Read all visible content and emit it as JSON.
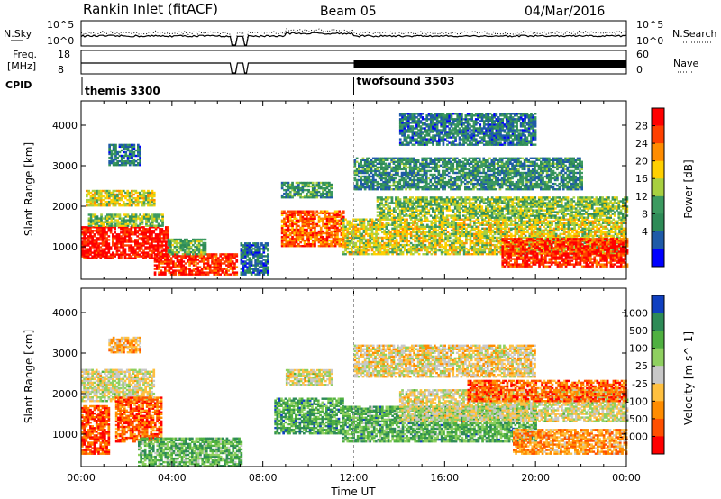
{
  "header": {
    "station": "Rankin Inlet (fitACF)",
    "beam": "Beam 05",
    "date": "04/Mar/2016"
  },
  "ops": {
    "nsky_label": "N.Sky",
    "nsky_ticks": [
      "10^5",
      "10^0"
    ],
    "nsearch_label": "N.Search",
    "nsearch_ticks": [
      "10^5",
      "10^0"
    ],
    "freq_label_1": "Freq.",
    "freq_label_2": "[MHz]",
    "freq_ticks": [
      "18",
      "8"
    ],
    "nave_label": "Nave",
    "nave_ticks": [
      "60",
      "0"
    ],
    "cpid_label": "CPID",
    "cpid_segments": [
      {
        "name": "themis 3300",
        "start_hour": 0
      },
      {
        "name": "twofsound 3503",
        "start_hour": 12
      }
    ]
  },
  "chart_data": [
    {
      "type": "heatmap",
      "name": "Power",
      "xlabel": "",
      "ylabel": "Slant Range [km]",
      "xlim_hours": [
        0,
        24
      ],
      "ylim": [
        200,
        4600
      ],
      "ytick_values": [
        1000,
        2000,
        3000,
        4000
      ],
      "ytick_labels": [
        "1000",
        "2000",
        "3000",
        "4000"
      ],
      "colorbar_label": "Power [dB]",
      "colorbar_ticks": [
        "28",
        "24",
        "20",
        "16",
        "12",
        "8",
        "4"
      ],
      "colorbar_colors": [
        "#ff0000",
        "#ff4000",
        "#ff8c00",
        "#ffd000",
        "#a8d040",
        "#3c9a60",
        "#2e8b57",
        "#1e5aa8",
        "#0000ff"
      ],
      "regions": [
        {
          "t": [
            0.0,
            3.8
          ],
          "r": [
            700,
            1500
          ],
          "level": 0.95
        },
        {
          "t": [
            0.3,
            3.6
          ],
          "r": [
            1500,
            1800
          ],
          "level": 0.45
        },
        {
          "t": [
            0.2,
            3.2
          ],
          "r": [
            2000,
            2400
          ],
          "level": 0.55
        },
        {
          "t": [
            1.2,
            2.6
          ],
          "r": [
            3000,
            3500
          ],
          "level": 0.25
        },
        {
          "t": [
            3.2,
            6.8
          ],
          "r": [
            300,
            800
          ],
          "level": 0.9
        },
        {
          "t": [
            3.8,
            5.5
          ],
          "r": [
            800,
            1200
          ],
          "level": 0.4
        },
        {
          "t": [
            7.0,
            8.2
          ],
          "r": [
            300,
            1100
          ],
          "level": 0.2
        },
        {
          "t": [
            8.8,
            11.5
          ],
          "r": [
            1000,
            1900
          ],
          "level": 0.8
        },
        {
          "t": [
            8.8,
            11.0
          ],
          "r": [
            2200,
            2600
          ],
          "level": 0.35
        },
        {
          "t": [
            11.5,
            24.0
          ],
          "r": [
            800,
            1700
          ],
          "level": 0.55
        },
        {
          "t": [
            13.0,
            24.0
          ],
          "r": [
            1700,
            2200
          ],
          "level": 0.45
        },
        {
          "t": [
            18.5,
            24.0
          ],
          "r": [
            500,
            1200
          ],
          "level": 0.9
        },
        {
          "t": [
            12.0,
            22.0
          ],
          "r": [
            2400,
            3200
          ],
          "level": 0.3
        },
        {
          "t": [
            14.0,
            20.0
          ],
          "r": [
            3500,
            4300
          ],
          "level": 0.25
        }
      ]
    },
    {
      "type": "heatmap",
      "name": "Velocity",
      "xlabel": "Time UT",
      "ylabel": "Slant Range [km]",
      "xlim_hours": [
        0,
        24
      ],
      "ylim": [
        200,
        4600
      ],
      "xtick_values": [
        0,
        4,
        8,
        12,
        16,
        20,
        24
      ],
      "xtick_labels": [
        "00:00",
        "04:00",
        "08:00",
        "12:00",
        "16:00",
        "20:00",
        "00:00"
      ],
      "ytick_values": [
        1000,
        2000,
        3000,
        4000
      ],
      "ytick_labels": [
        "1000",
        "2000",
        "3000",
        "4000"
      ],
      "colorbar_label": "Velocity [m s^-1]",
      "colorbar_ticks": [
        "1000",
        "500",
        "100",
        "25",
        "-25",
        "-100",
        "-500",
        "-1000"
      ],
      "colorbar_colors": [
        "#1040c0",
        "#2e8b57",
        "#4fb040",
        "#8fd060",
        "#c8c8c8",
        "#ffc040",
        "#ff8c00",
        "#ff5000",
        "#ff0000"
      ],
      "regions": [
        {
          "t": [
            0.0,
            1.2
          ],
          "r": [
            500,
            1700
          ],
          "level": 0.15
        },
        {
          "t": [
            0.0,
            3.2
          ],
          "r": [
            1800,
            2600
          ],
          "level": 0.5
        },
        {
          "t": [
            1.5,
            3.5
          ],
          "r": [
            800,
            1900
          ],
          "level": 0.2
        },
        {
          "t": [
            1.2,
            2.6
          ],
          "r": [
            3000,
            3400
          ],
          "level": 0.35
        },
        {
          "t": [
            2.5,
            7.0
          ],
          "r": [
            200,
            900
          ],
          "level": 0.7
        },
        {
          "t": [
            8.5,
            11.5
          ],
          "r": [
            1000,
            1900
          ],
          "level": 0.75
        },
        {
          "t": [
            9.0,
            11.0
          ],
          "r": [
            2200,
            2600
          ],
          "level": 0.5
        },
        {
          "t": [
            11.5,
            20.0
          ],
          "r": [
            800,
            1700
          ],
          "level": 0.72
        },
        {
          "t": [
            14.0,
            24.0
          ],
          "r": [
            1300,
            2100
          ],
          "level": 0.5
        },
        {
          "t": [
            17.0,
            24.0
          ],
          "r": [
            1800,
            2300
          ],
          "level": 0.2
        },
        {
          "t": [
            19.0,
            24.0
          ],
          "r": [
            500,
            1100
          ],
          "level": 0.3
        },
        {
          "t": [
            12.0,
            20.0
          ],
          "r": [
            2400,
            3200
          ],
          "level": 0.45
        }
      ]
    }
  ]
}
